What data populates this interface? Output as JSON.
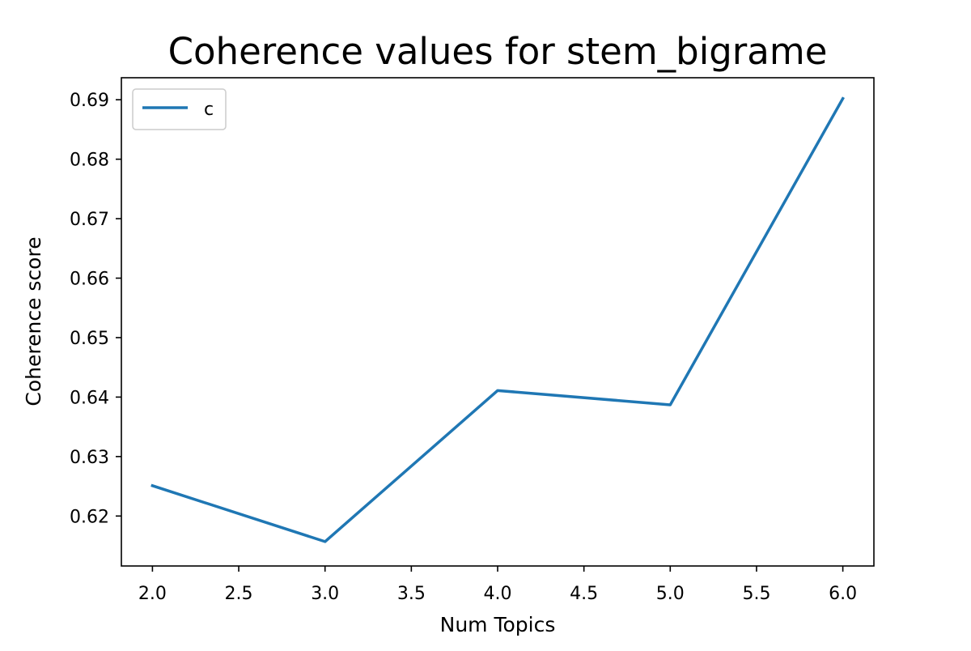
{
  "chart_data": {
    "type": "line",
    "title": "Coherence values for stem_bigrame",
    "xlabel": "Num Topics",
    "ylabel": "Coherence score",
    "x": [
      2,
      3,
      4,
      5,
      6
    ],
    "series": [
      {
        "name": "c",
        "values": [
          0.6251,
          0.6157,
          0.6411,
          0.6387,
          0.6902
        ],
        "color": "#1f77b4"
      }
    ],
    "xlim": [
      1.82,
      6.18
    ],
    "ylim": [
      0.6116,
      0.6937
    ],
    "xticks": [
      2.0,
      2.5,
      3.0,
      3.5,
      4.0,
      4.5,
      5.0,
      5.5,
      6.0
    ],
    "xtick_labels": [
      "2.0",
      "2.5",
      "3.0",
      "3.5",
      "4.0",
      "4.5",
      "5.0",
      "5.5",
      "6.0"
    ],
    "yticks": [
      0.62,
      0.63,
      0.64,
      0.65,
      0.66,
      0.67,
      0.68,
      0.69
    ],
    "ytick_labels": [
      "0.62",
      "0.63",
      "0.64",
      "0.65",
      "0.66",
      "0.67",
      "0.68",
      "0.69"
    ],
    "grid": false,
    "legend_position": "top-left"
  }
}
